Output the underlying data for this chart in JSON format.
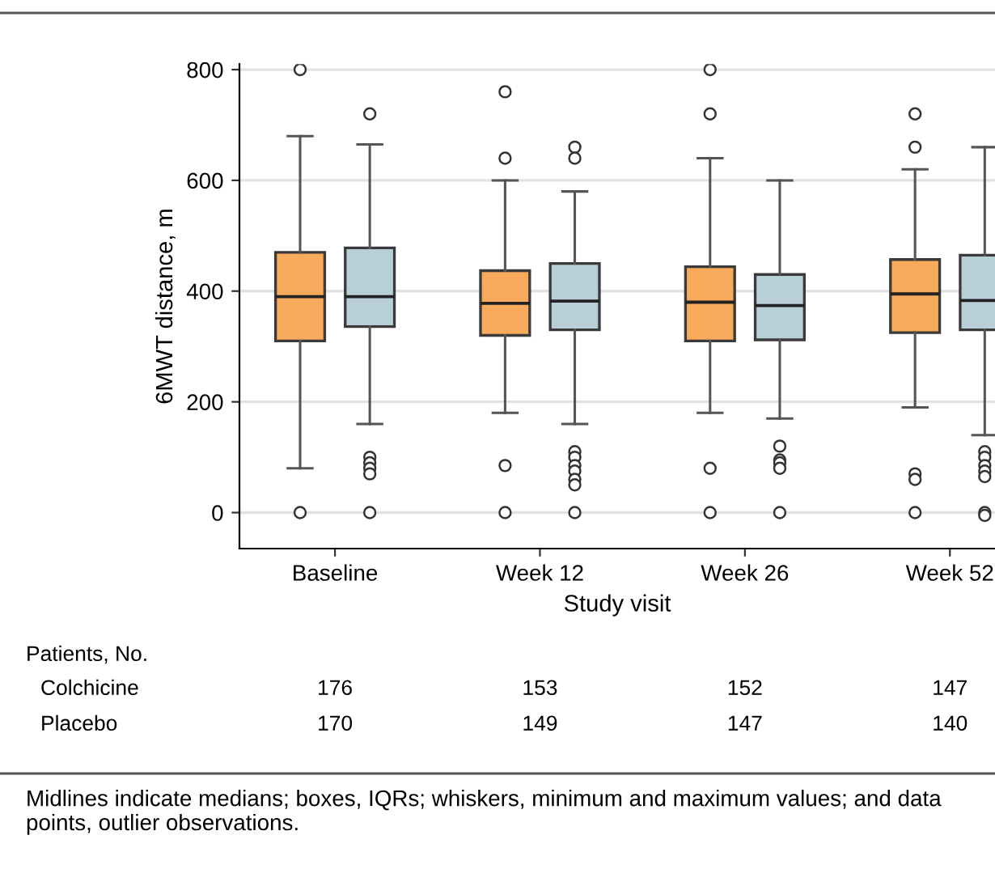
{
  "chart_data": {
    "type": "box",
    "xlabel": "Study visit",
    "ylabel": "6MWT distance, m",
    "categories": [
      "Baseline",
      "Week 12",
      "Week 26",
      "Week 52"
    ],
    "ylim": [
      -65,
      810
    ],
    "yticks": [
      0,
      200,
      400,
      600,
      800
    ],
    "grid": "y",
    "marker": "circle",
    "series": [
      {
        "color": "#f7a95c",
        "boxes": [
          {
            "low": 80,
            "q1": 310,
            "median": 390,
            "q3": 470,
            "high": 680,
            "outliers": [
              800,
              0
            ]
          },
          {
            "low": 180,
            "q1": 320,
            "median": 378,
            "q3": 437,
            "high": 600,
            "outliers": [
              760,
              640,
              85,
              0
            ]
          },
          {
            "low": 180,
            "q1": 310,
            "median": 380,
            "q3": 444,
            "high": 640,
            "outliers": [
              800,
              720,
              80,
              0
            ]
          },
          {
            "low": 190,
            "q1": 325,
            "median": 395,
            "q3": 457,
            "high": 620,
            "outliers": [
              720,
              660,
              70,
              60,
              0
            ]
          }
        ]
      },
      {
        "color": "#b8cfd8",
        "boxes": [
          {
            "low": 160,
            "q1": 336,
            "median": 390,
            "q3": 478,
            "high": 665,
            "outliers": [
              720,
              100,
              90,
              80,
              70,
              0
            ]
          },
          {
            "low": 160,
            "q1": 330,
            "median": 382,
            "q3": 450,
            "high": 580,
            "outliers": [
              660,
              640,
              110,
              100,
              85,
              75,
              60,
              50,
              0
            ]
          },
          {
            "low": 170,
            "q1": 312,
            "median": 374,
            "q3": 430,
            "high": 600,
            "outliers": [
              120,
              95,
              90,
              80,
              0
            ]
          },
          {
            "low": 140,
            "q1": 330,
            "median": 383,
            "q3": 465,
            "high": 660,
            "outliers": [
              110,
              100,
              85,
              75,
              65,
              0,
              -5
            ]
          }
        ]
      }
    ],
    "annotations": [
      "Patients, No.",
      "Colchicine",
      "176",
      "153",
      "152",
      "147",
      "Placebo",
      "170",
      "149",
      "147",
      "140",
      "Midlines indicate medians; boxes, IQRs; whiskers, minimum and maximum values; and data points, outlier observations."
    ]
  }
}
